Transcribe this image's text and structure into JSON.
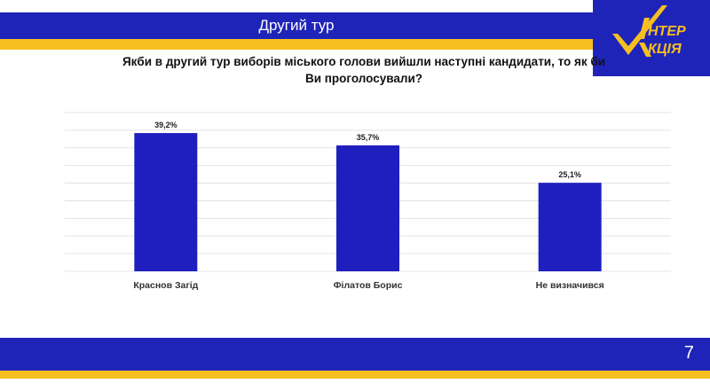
{
  "header": {
    "title": "Другий тур"
  },
  "logo": {
    "line1": "НТЕР",
    "line2": "КЦІЯ"
  },
  "question": {
    "line1": "Якби в другий тур виборів міського голови вийшли наступні кандидати, то як би",
    "line2": "Ви проголосували?"
  },
  "footer": {
    "page_number": "7"
  },
  "colors": {
    "brand_blue": "#1f24b9",
    "brand_yellow": "#f6bf1f",
    "bar": "#1f1fbf",
    "grid": "#e3e3e3"
  },
  "chart_data": {
    "type": "bar",
    "categories": [
      "Краснов Загід",
      "Філатов Борис",
      "Не визначився"
    ],
    "values": [
      39.2,
      35.7,
      25.1
    ],
    "value_labels": [
      "39,2%",
      "35,7%",
      "25,1%"
    ],
    "title": "",
    "xlabel": "",
    "ylabel": "",
    "ylim": [
      0,
      45
    ],
    "grid": true,
    "legend": "none"
  }
}
